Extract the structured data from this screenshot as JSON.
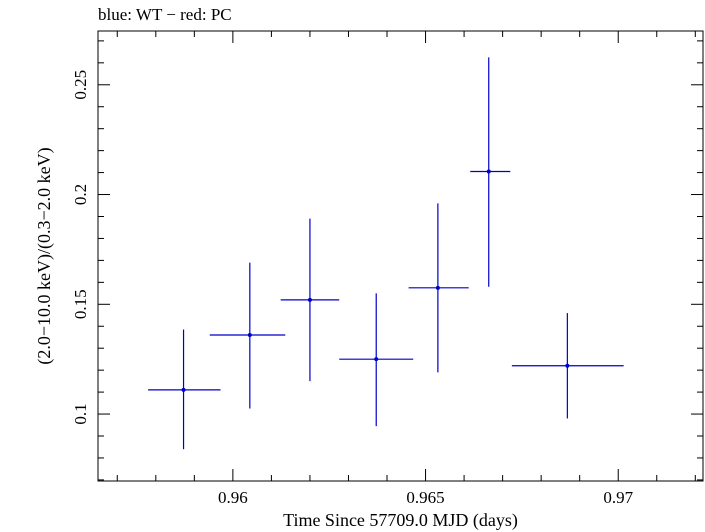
{
  "chart_data": {
    "type": "scatter",
    "title": "blue: WT − red: PC",
    "xlabel": "Time Since 57709.0 MJD (days)",
    "ylabel": "(2.0−10.0 keV)/(0.3−2.0 keV)",
    "xlim": [
      0.9565,
      0.9722
    ],
    "ylim": [
      0.0695,
      0.2745
    ],
    "x_ticks": [
      0.96,
      0.965,
      0.97
    ],
    "x_tick_labels": [
      "0.96",
      "0.965",
      "0.97"
    ],
    "y_ticks": [
      0.1,
      0.15,
      0.2,
      0.25
    ],
    "y_tick_labels": [
      "0.1",
      "0.15",
      "0.2",
      "0.25"
    ],
    "grid": false,
    "series": [
      {
        "name": "WT",
        "color": "#0000cc",
        "points": [
          {
            "x": 0.95872,
            "xlo": 0.9578,
            "xhi": 0.95968,
            "y": 0.111,
            "ylo": 0.084,
            "yhi": 0.1385
          },
          {
            "x": 0.96044,
            "xlo": 0.9594,
            "xhi": 0.96136,
            "y": 0.136,
            "ylo": 0.1025,
            "yhi": 0.169
          },
          {
            "x": 0.962,
            "xlo": 0.96124,
            "xhi": 0.96276,
            "y": 0.152,
            "ylo": 0.115,
            "yhi": 0.189
          },
          {
            "x": 0.96372,
            "xlo": 0.96276,
            "xhi": 0.96468,
            "y": 0.125,
            "ylo": 0.0945,
            "yhi": 0.155
          },
          {
            "x": 0.96532,
            "xlo": 0.96456,
            "xhi": 0.96612,
            "y": 0.1575,
            "ylo": 0.119,
            "yhi": 0.196
          },
          {
            "x": 0.96664,
            "xlo": 0.96616,
            "xhi": 0.9672,
            "y": 0.2105,
            "ylo": 0.158,
            "yhi": 0.2625
          },
          {
            "x": 0.96868,
            "xlo": 0.96724,
            "xhi": 0.97014,
            "y": 0.122,
            "ylo": 0.098,
            "yhi": 0.146
          }
        ]
      }
    ]
  }
}
